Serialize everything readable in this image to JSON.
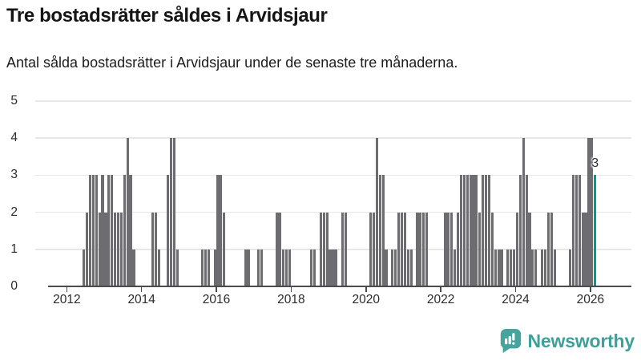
{
  "page": {
    "title": "Tre bostadsrätter såldes i Arvidsjaur",
    "subtitle": "Antal sålda bostadsrätter i Arvidsjaur under de senaste tre månaderna."
  },
  "chart_data": {
    "type": "bar",
    "title": "Tre bostadsrätter såldes i Arvidsjaur",
    "subtitle": "Antal sålda bostadsrätter i Arvidsjaur under de senaste tre månaderna.",
    "frequency": "monthly",
    "x_start_month": "2011-07",
    "x_end_month": "2026-02",
    "x_tick_labels": [
      "2012",
      "2014",
      "2016",
      "2018",
      "2020",
      "2022",
      "2024",
      "2026"
    ],
    "y_tick_labels": [
      "0",
      "1",
      "2",
      "3",
      "4",
      "5"
    ],
    "ylim": [
      0,
      5
    ],
    "grid": "horizontal",
    "legend": "none",
    "values": [
      0,
      0,
      0,
      0,
      0,
      0,
      0,
      0,
      0,
      0,
      0,
      1,
      2,
      3,
      3,
      3,
      2,
      3,
      2,
      3,
      3,
      2,
      2,
      2,
      3,
      4,
      3,
      1,
      0,
      0,
      0,
      0,
      0,
      2,
      2,
      1,
      0,
      0,
      3,
      4,
      4,
      1,
      0,
      0,
      0,
      0,
      0,
      0,
      0,
      1,
      1,
      1,
      0,
      1,
      3,
      3,
      2,
      0,
      0,
      0,
      0,
      0,
      0,
      1,
      1,
      0,
      0,
      1,
      1,
      0,
      0,
      0,
      0,
      2,
      2,
      1,
      1,
      1,
      0,
      0,
      0,
      0,
      0,
      0,
      1,
      1,
      0,
      2,
      2,
      2,
      1,
      1,
      1,
      0,
      2,
      2,
      0,
      0,
      0,
      0,
      0,
      0,
      0,
      2,
      2,
      4,
      3,
      3,
      1,
      0,
      1,
      1,
      2,
      2,
      2,
      1,
      1,
      0,
      2,
      2,
      2,
      2,
      0,
      0,
      0,
      0,
      0,
      2,
      2,
      2,
      1,
      2,
      3,
      3,
      3,
      3,
      3,
      3,
      2,
      3,
      3,
      3,
      2,
      1,
      1,
      1,
      0,
      1,
      1,
      1,
      2,
      3,
      4,
      3,
      2,
      1,
      1,
      0,
      1,
      1,
      2,
      2,
      1,
      0,
      0,
      0,
      0,
      1,
      3,
      3,
      3,
      2,
      2,
      4,
      4,
      3
    ],
    "highlight_last_value": 3,
    "end_label": "3",
    "colors": {
      "bar": "#6c6c71",
      "highlight": "#009a94",
      "grid": "#e7e7e7",
      "axis": "#4c4c50",
      "tick_text": "#2b2b2b"
    }
  },
  "footer": {
    "logo_text": "Newsworthy",
    "logo_color": "#46a49d"
  }
}
